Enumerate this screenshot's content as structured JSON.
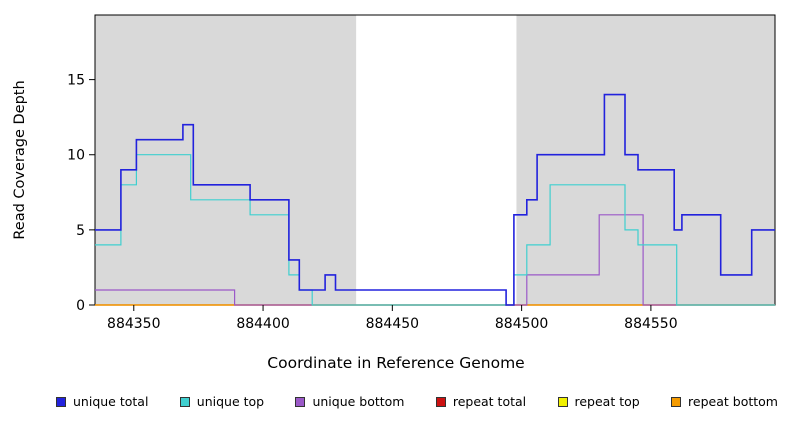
{
  "chart_data": {
    "type": "line",
    "step": true,
    "title": "",
    "xlabel": "Coordinate in Reference Genome",
    "ylabel": "Read Coverage Depth",
    "xlim": [
      884335,
      884598
    ],
    "ylim": [
      0,
      19.3
    ],
    "xticks": [
      884350,
      884400,
      884450,
      884500,
      884550
    ],
    "yticks": [
      0,
      5,
      10,
      15
    ],
    "grid": false,
    "legend_position": "bottom",
    "plot_background": "#d9d9d9",
    "unshaded_region_x": [
      884436,
      884498
    ],
    "series": [
      {
        "name": "unique total",
        "color": "#2222dd",
        "width": 1.6,
        "points": [
          [
            884335,
            5
          ],
          [
            884345,
            9
          ],
          [
            884351,
            11
          ],
          [
            884369,
            12
          ],
          [
            884373,
            8
          ],
          [
            884395,
            7
          ],
          [
            884410,
            3
          ],
          [
            884414,
            1
          ],
          [
            884424,
            2
          ],
          [
            884428,
            1
          ],
          [
            884494,
            0
          ],
          [
            884497,
            6
          ],
          [
            884502,
            7
          ],
          [
            884506,
            10
          ],
          [
            884532,
            14
          ],
          [
            884540,
            10
          ],
          [
            884545,
            9
          ],
          [
            884559,
            5
          ],
          [
            884562,
            6
          ],
          [
            884577,
            2
          ],
          [
            884589,
            5
          ]
        ]
      },
      {
        "name": "unique top",
        "color": "#3fcfcf",
        "width": 1.2,
        "points": [
          [
            884335,
            4
          ],
          [
            884345,
            8
          ],
          [
            884351,
            10
          ],
          [
            884372,
            7
          ],
          [
            884395,
            6
          ],
          [
            884410,
            2
          ],
          [
            884414,
            1
          ],
          [
            884419,
            0
          ],
          [
            884497,
            2
          ],
          [
            884502,
            4
          ],
          [
            884511,
            8
          ],
          [
            884540,
            5
          ],
          [
            884545,
            4
          ],
          [
            884560,
            0
          ]
        ]
      },
      {
        "name": "unique bottom",
        "color": "#9b59c8",
        "width": 1.2,
        "points": [
          [
            884335,
            1
          ],
          [
            884389,
            0
          ],
          [
            884502,
            2
          ],
          [
            884530,
            6
          ],
          [
            884547,
            0
          ]
        ]
      },
      {
        "name": "repeat total",
        "color": "#cc1111",
        "width": 1.2,
        "points": [
          [
            884335,
            0
          ]
        ]
      },
      {
        "name": "repeat top",
        "color": "#f0f000",
        "width": 1.2,
        "points": [
          [
            884335,
            0
          ]
        ]
      },
      {
        "name": "repeat bottom",
        "color": "#f59b00",
        "width": 1.2,
        "points": [
          [
            884335,
            0
          ]
        ]
      }
    ],
    "draw_order": [
      4,
      3,
      5,
      2,
      1,
      0
    ]
  }
}
